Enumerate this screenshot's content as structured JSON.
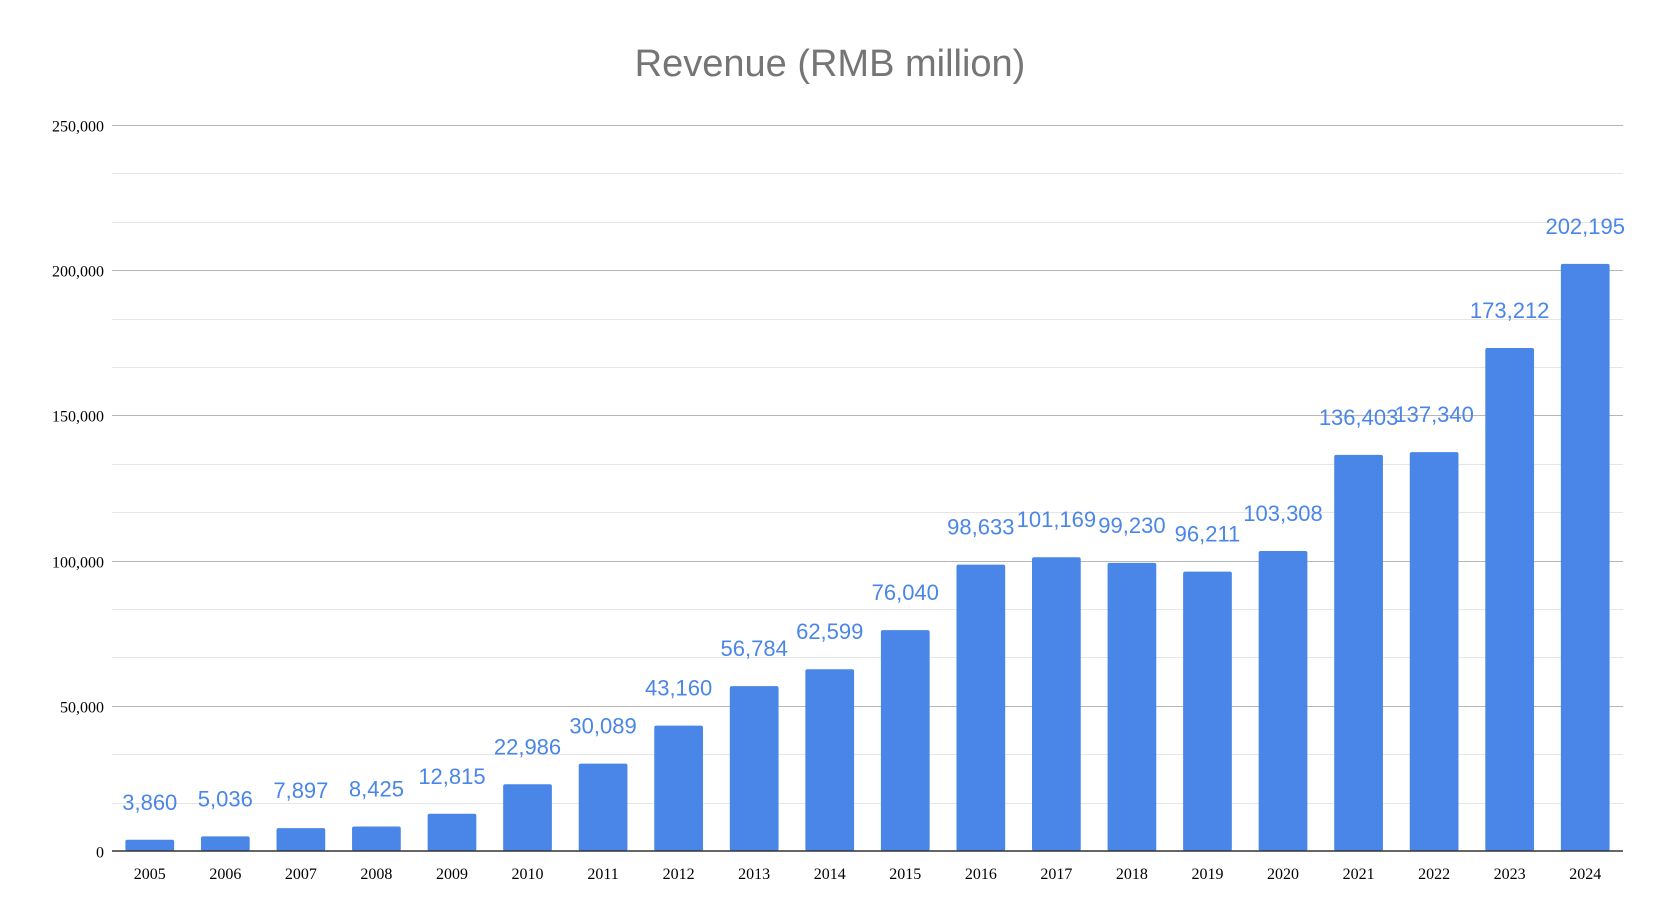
{
  "chart_data": {
    "type": "bar",
    "title": "Revenue (RMB million)",
    "xlabel": "",
    "ylabel": "",
    "ylim": [
      0,
      250000
    ],
    "yticks": [
      0,
      50000,
      100000,
      150000,
      200000,
      250000
    ],
    "ytick_labels": [
      "0",
      "50,000",
      "100,000",
      "150,000",
      "200,000",
      "250,000"
    ],
    "grid": true,
    "minor_grid_step": 16666.67,
    "bar_color": "#4a86e8",
    "label_color": "#4a86e8",
    "categories": [
      "2005",
      "2006",
      "2007",
      "2008",
      "2009",
      "2010",
      "2011",
      "2012",
      "2013",
      "2014",
      "2015",
      "2016",
      "2017",
      "2018",
      "2019",
      "2020",
      "2021",
      "2022",
      "2023",
      "2024"
    ],
    "values": [
      3860,
      5036,
      7897,
      8425,
      12815,
      22986,
      30089,
      43160,
      56784,
      62599,
      76040,
      98633,
      101169,
      99230,
      96211,
      103308,
      136403,
      137340,
      173212,
      202195
    ],
    "data_labels": [
      "3,860",
      "5,036",
      "7,897",
      "8,425",
      "12,815",
      "22,986",
      "30,089",
      "43,160",
      "56,784",
      "62,599",
      "76,040",
      "98,633",
      "101,169",
      "99,230",
      "96,211",
      "103,308",
      "136,403",
      "137,340",
      "173,212",
      "202,195"
    ]
  }
}
